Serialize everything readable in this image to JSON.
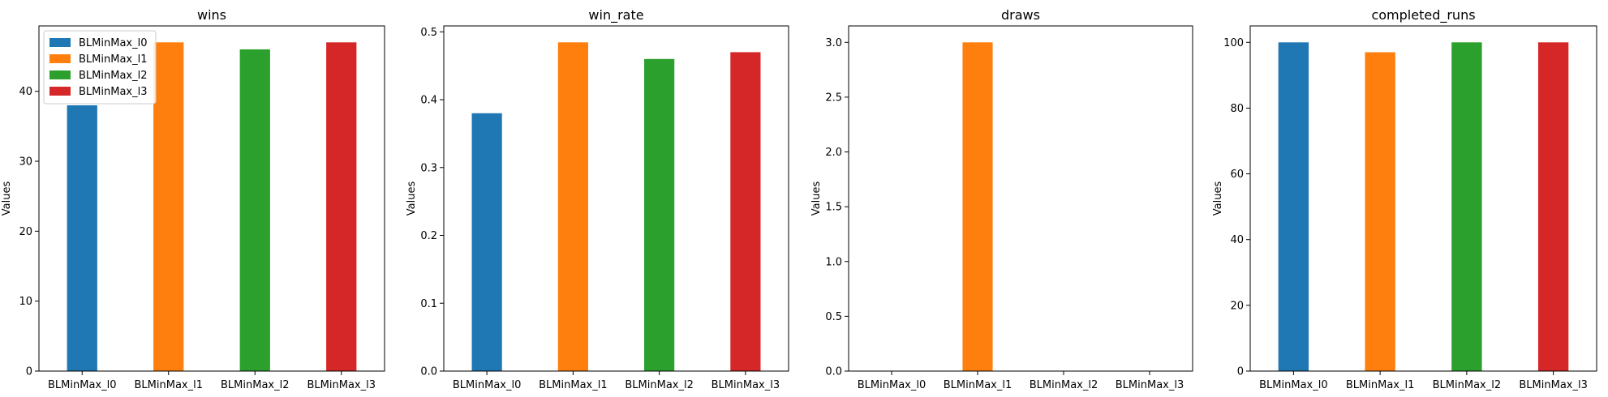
{
  "chart_data": [
    {
      "type": "bar",
      "title": "wins",
      "xlabel": "",
      "ylabel": "Values",
      "categories": [
        "BLMinMax_l0",
        "BLMinMax_l1",
        "BLMinMax_l2",
        "BLMinMax_l3"
      ],
      "values": [
        38,
        47,
        46,
        47
      ],
      "ylim": [
        0,
        49.35
      ],
      "yticks": [
        0,
        10,
        20,
        30,
        40
      ],
      "legend": {
        "placement": "top-left",
        "entries": [
          "BLMinMax_l0",
          "BLMinMax_l1",
          "BLMinMax_l2",
          "BLMinMax_l3"
        ]
      }
    },
    {
      "type": "bar",
      "title": "win_rate",
      "xlabel": "",
      "ylabel": "Values",
      "categories": [
        "BLMinMax_l0",
        "BLMinMax_l1",
        "BLMinMax_l2",
        "BLMinMax_l3"
      ],
      "values": [
        0.38,
        0.4845,
        0.46,
        0.47
      ],
      "ylim": [
        0,
        0.5087
      ],
      "yticks": [
        0.0,
        0.1,
        0.2,
        0.3,
        0.4,
        0.5
      ]
    },
    {
      "type": "bar",
      "title": "draws",
      "xlabel": "",
      "ylabel": "Values",
      "categories": [
        "BLMinMax_l0",
        "BLMinMax_l1",
        "BLMinMax_l2",
        "BLMinMax_l3"
      ],
      "values": [
        0,
        3,
        0,
        0
      ],
      "ylim": [
        0,
        3.15
      ],
      "yticks": [
        0.0,
        0.5,
        1.0,
        1.5,
        2.0,
        2.5,
        3.0
      ]
    },
    {
      "type": "bar",
      "title": "completed_runs",
      "xlabel": "",
      "ylabel": "Values",
      "categories": [
        "BLMinMax_l0",
        "BLMinMax_l1",
        "BLMinMax_l2",
        "BLMinMax_l3"
      ],
      "values": [
        100,
        97,
        100,
        100
      ],
      "ylim": [
        0,
        105
      ],
      "yticks": [
        0,
        20,
        40,
        60,
        80,
        100
      ]
    }
  ],
  "colors": [
    "#1f77b4",
    "#ff7f0e",
    "#2ca02c",
    "#d62728"
  ]
}
